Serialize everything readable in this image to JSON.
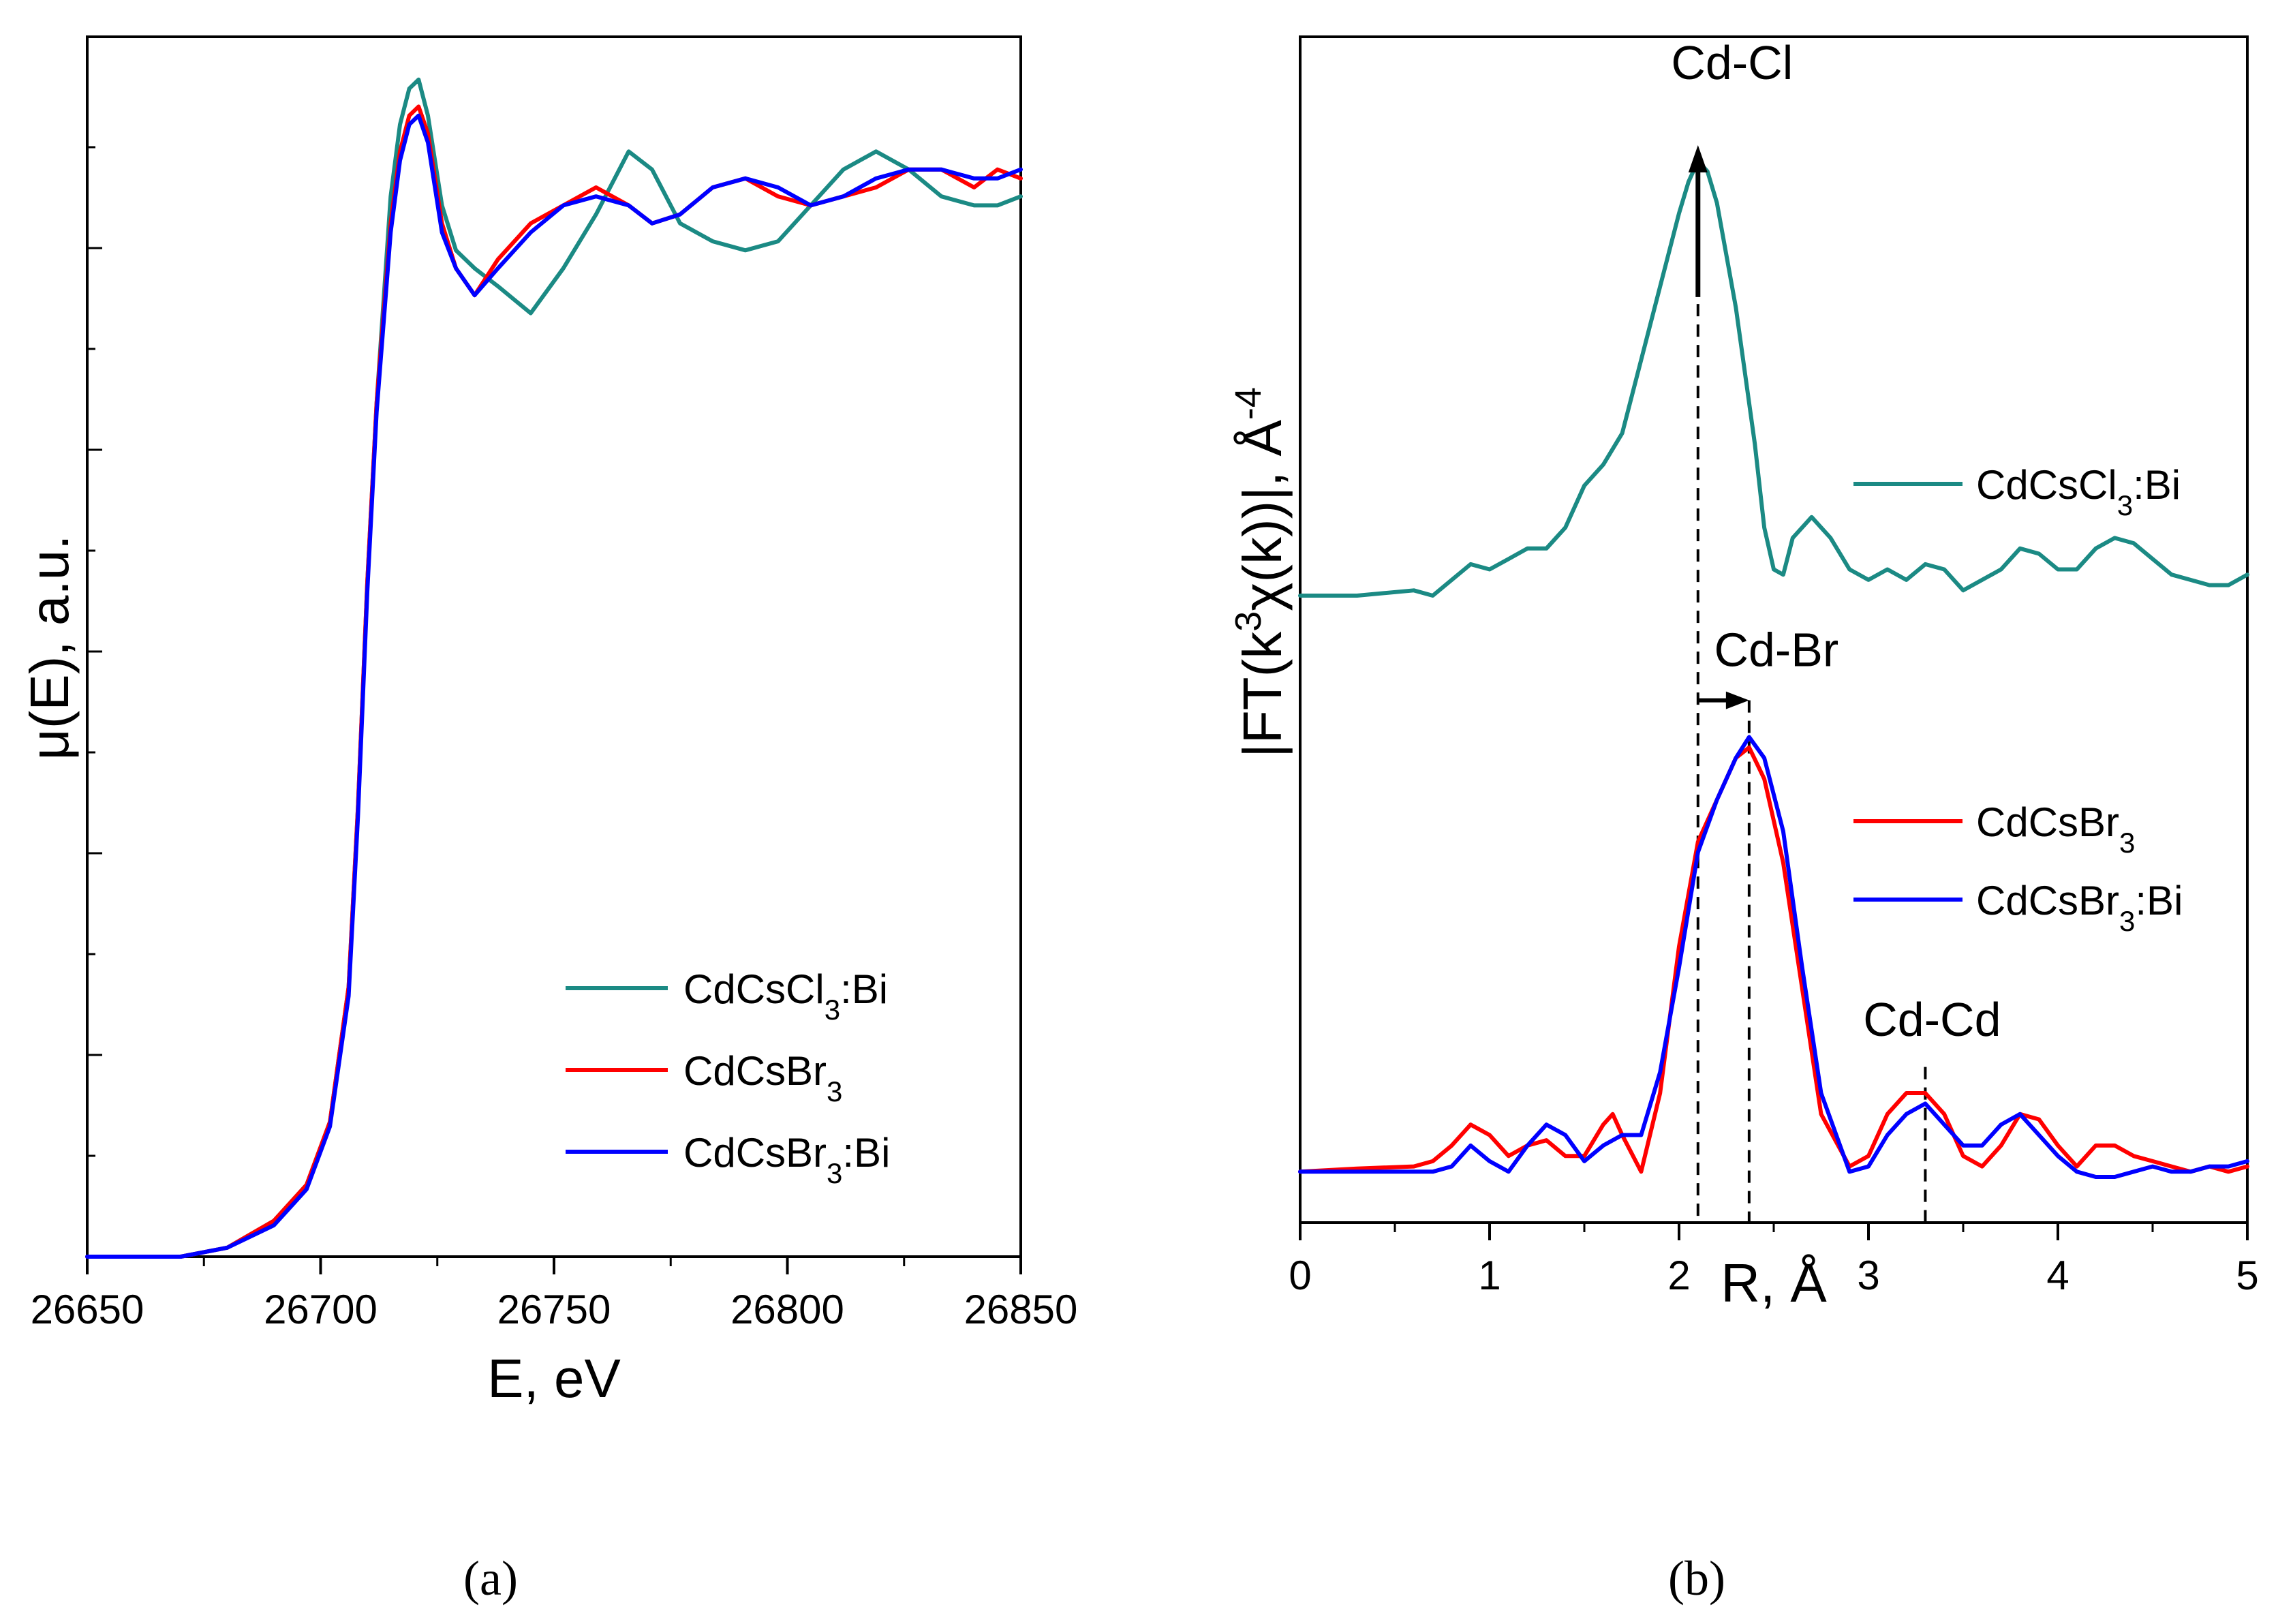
{
  "colors": {
    "cl_bi": "#1b8a84",
    "br": "#ff0000",
    "br_bi": "#0000ff",
    "axis": "#000000"
  },
  "chart_data": [
    {
      "id": "a",
      "panel_label": "(a)",
      "type": "line",
      "xlabel": "E, eV",
      "ylabel": "μ(E), a.u.",
      "xlim": [
        26650,
        26850
      ],
      "ylim": [
        0,
        1.3
      ],
      "xticks": [
        26650,
        26700,
        26750,
        26800,
        26850
      ],
      "legend_position": "bottom-right",
      "series": [
        {
          "name": "CdCsCl3:Bi",
          "legend": {
            "base": "CdCsCl",
            "sub": "3",
            "suffix": ":Bi"
          },
          "color_key": "cl_bi",
          "x": [
            26650,
            26670,
            26680,
            26690,
            26697,
            26702,
            26706,
            26708,
            26710,
            26712,
            26715,
            26717,
            26719,
            26721,
            26723,
            26726,
            26729,
            26733,
            26738,
            26745,
            26752,
            26759,
            26766,
            26771,
            26777,
            26784,
            26791,
            26798,
            26805,
            26812,
            26819,
            26826,
            26833,
            26840,
            26845,
            26850
          ],
          "y": [
            0.0,
            0.0,
            0.01,
            0.04,
            0.08,
            0.15,
            0.3,
            0.5,
            0.75,
            0.95,
            1.18,
            1.26,
            1.3,
            1.31,
            1.27,
            1.17,
            1.12,
            1.1,
            1.08,
            1.05,
            1.1,
            1.16,
            1.23,
            1.21,
            1.15,
            1.13,
            1.12,
            1.13,
            1.17,
            1.21,
            1.23,
            1.21,
            1.18,
            1.17,
            1.17,
            1.18
          ]
        },
        {
          "name": "CdCsBr3",
          "legend": {
            "base": "CdCsBr",
            "sub": "3",
            "suffix": ""
          },
          "color_key": "br",
          "x": [
            26650,
            26670,
            26680,
            26690,
            26697,
            26702,
            26706,
            26708,
            26710,
            26712,
            26715,
            26717,
            26719,
            26721,
            26723,
            26726,
            26729,
            26733,
            26738,
            26745,
            26752,
            26759,
            26766,
            26771,
            26777,
            26784,
            26791,
            26798,
            26805,
            26812,
            26819,
            26826,
            26833,
            26840,
            26845,
            26850
          ],
          "y": [
            0.0,
            0.0,
            0.01,
            0.04,
            0.08,
            0.15,
            0.3,
            0.5,
            0.75,
            0.95,
            1.15,
            1.23,
            1.27,
            1.28,
            1.25,
            1.15,
            1.1,
            1.07,
            1.11,
            1.15,
            1.17,
            1.19,
            1.17,
            1.15,
            1.16,
            1.19,
            1.2,
            1.18,
            1.17,
            1.18,
            1.19,
            1.21,
            1.21,
            1.19,
            1.21,
            1.2
          ]
        },
        {
          "name": "CdCsBr3:Bi",
          "legend": {
            "base": "CdCsBr",
            "sub": "3",
            "suffix": ":Bi"
          },
          "color_key": "br_bi",
          "x": [
            26650,
            26670,
            26680,
            26690,
            26697,
            26702,
            26706,
            26708,
            26710,
            26712,
            26715,
            26717,
            26719,
            26721,
            26723,
            26726,
            26729,
            26733,
            26738,
            26745,
            26752,
            26759,
            26766,
            26771,
            26777,
            26784,
            26791,
            26798,
            26805,
            26812,
            26819,
            26826,
            26833,
            26840,
            26845,
            26850
          ],
          "y": [
            0.0,
            0.0,
            0.01,
            0.035,
            0.075,
            0.145,
            0.29,
            0.49,
            0.74,
            0.94,
            1.14,
            1.22,
            1.26,
            1.27,
            1.24,
            1.14,
            1.1,
            1.07,
            1.1,
            1.14,
            1.17,
            1.18,
            1.17,
            1.15,
            1.16,
            1.19,
            1.2,
            1.19,
            1.17,
            1.18,
            1.2,
            1.21,
            1.21,
            1.2,
            1.2,
            1.21
          ]
        }
      ]
    },
    {
      "id": "b",
      "panel_label": "(b)",
      "type": "line",
      "xlabel": "R, Å",
      "ylabel": {
        "text": "|FT(k",
        "sup1": "3",
        "mid": "χ(k))|, Å",
        "sup2": "-4"
      },
      "xlim": [
        0,
        5
      ],
      "ylim": [
        0,
        1.0
      ],
      "xticks": [
        0,
        1,
        2,
        3,
        4,
        5
      ],
      "legend_position": "right",
      "annotations": [
        {
          "text": "Cd-Cl",
          "x": 2.1,
          "y": 0.98
        },
        {
          "text": "Cd-Br",
          "x": 2.37,
          "y": 0.47
        },
        {
          "text": "Cd-Cd",
          "x": 3.3,
          "y": 0.13
        }
      ],
      "series": [
        {
          "name": "CdCsCl3:Bi",
          "legend": {
            "base": "CdCsCl",
            "sub": "3",
            "suffix": ":Bi"
          },
          "color_key": "cl_bi",
          "x": [
            0,
            0.3,
            0.6,
            0.7,
            0.8,
            0.9,
            1.0,
            1.1,
            1.2,
            1.3,
            1.4,
            1.5,
            1.6,
            1.7,
            1.8,
            1.9,
            2.0,
            2.05,
            2.1,
            2.15,
            2.2,
            2.3,
            2.4,
            2.45,
            2.5,
            2.55,
            2.6,
            2.7,
            2.8,
            2.9,
            3.0,
            3.1,
            3.2,
            3.3,
            3.4,
            3.5,
            3.6,
            3.7,
            3.8,
            3.9,
            4.0,
            4.1,
            4.2,
            4.3,
            4.4,
            4.5,
            4.6,
            4.7,
            4.8,
            4.9,
            5.0
          ],
          "y": [
            0.555,
            0.555,
            0.56,
            0.555,
            0.57,
            0.585,
            0.58,
            0.59,
            0.6,
            0.6,
            0.62,
            0.66,
            0.68,
            0.71,
            0.78,
            0.85,
            0.92,
            0.95,
            0.97,
            0.96,
            0.93,
            0.83,
            0.7,
            0.62,
            0.58,
            0.575,
            0.61,
            0.63,
            0.61,
            0.58,
            0.57,
            0.58,
            0.57,
            0.585,
            0.58,
            0.56,
            0.57,
            0.58,
            0.6,
            0.595,
            0.58,
            0.58,
            0.6,
            0.61,
            0.605,
            0.59,
            0.575,
            0.57,
            0.565,
            0.565,
            0.575
          ]
        },
        {
          "name": "CdCsBr3",
          "legend": {
            "base": "CdCsBr",
            "sub": "3",
            "suffix": ""
          },
          "color_key": "br",
          "x": [
            0,
            0.3,
            0.6,
            0.7,
            0.8,
            0.9,
            1.0,
            1.1,
            1.2,
            1.3,
            1.4,
            1.5,
            1.6,
            1.65,
            1.7,
            1.8,
            1.9,
            2.0,
            2.1,
            2.2,
            2.3,
            2.37,
            2.45,
            2.55,
            2.65,
            2.75,
            2.9,
            3.0,
            3.1,
            3.2,
            3.3,
            3.4,
            3.5,
            3.6,
            3.7,
            3.8,
            3.9,
            4.0,
            4.1,
            4.2,
            4.3,
            4.4,
            4.5,
            4.6,
            4.7,
            4.8,
            4.9,
            5.0
          ],
          "y": [
            0.005,
            0.008,
            0.01,
            0.015,
            0.03,
            0.05,
            0.04,
            0.02,
            0.03,
            0.035,
            0.02,
            0.02,
            0.05,
            0.06,
            0.04,
            0.005,
            0.08,
            0.22,
            0.32,
            0.36,
            0.4,
            0.41,
            0.38,
            0.3,
            0.18,
            0.06,
            0.01,
            0.02,
            0.06,
            0.08,
            0.08,
            0.06,
            0.02,
            0.01,
            0.03,
            0.06,
            0.055,
            0.03,
            0.01,
            0.03,
            0.03,
            0.02,
            0.015,
            0.01,
            0.005,
            0.01,
            0.005,
            0.01
          ]
        },
        {
          "name": "CdCsBr3:Bi",
          "legend": {
            "base": "CdCsBr",
            "sub": "3",
            "suffix": ":Bi"
          },
          "color_key": "br_bi",
          "x": [
            0,
            0.3,
            0.6,
            0.7,
            0.8,
            0.9,
            1.0,
            1.1,
            1.2,
            1.3,
            1.4,
            1.5,
            1.6,
            1.7,
            1.8,
            1.9,
            2.0,
            2.1,
            2.2,
            2.3,
            2.37,
            2.45,
            2.55,
            2.65,
            2.75,
            2.9,
            3.0,
            3.1,
            3.2,
            3.3,
            3.4,
            3.5,
            3.6,
            3.7,
            3.8,
            3.9,
            4.0,
            4.1,
            4.2,
            4.3,
            4.4,
            4.5,
            4.6,
            4.7,
            4.8,
            4.9,
            5.0
          ],
          "y": [
            0.005,
            0.005,
            0.005,
            0.005,
            0.01,
            0.03,
            0.015,
            0.005,
            0.03,
            0.05,
            0.04,
            0.015,
            0.03,
            0.04,
            0.04,
            0.1,
            0.2,
            0.31,
            0.36,
            0.4,
            0.42,
            0.4,
            0.33,
            0.2,
            0.08,
            0.005,
            0.01,
            0.04,
            0.06,
            0.07,
            0.05,
            0.03,
            0.03,
            0.05,
            0.06,
            0.04,
            0.02,
            0.005,
            0.0,
            0.0,
            0.005,
            0.01,
            0.005,
            0.005,
            0.01,
            0.01,
            0.015
          ]
        }
      ]
    }
  ]
}
